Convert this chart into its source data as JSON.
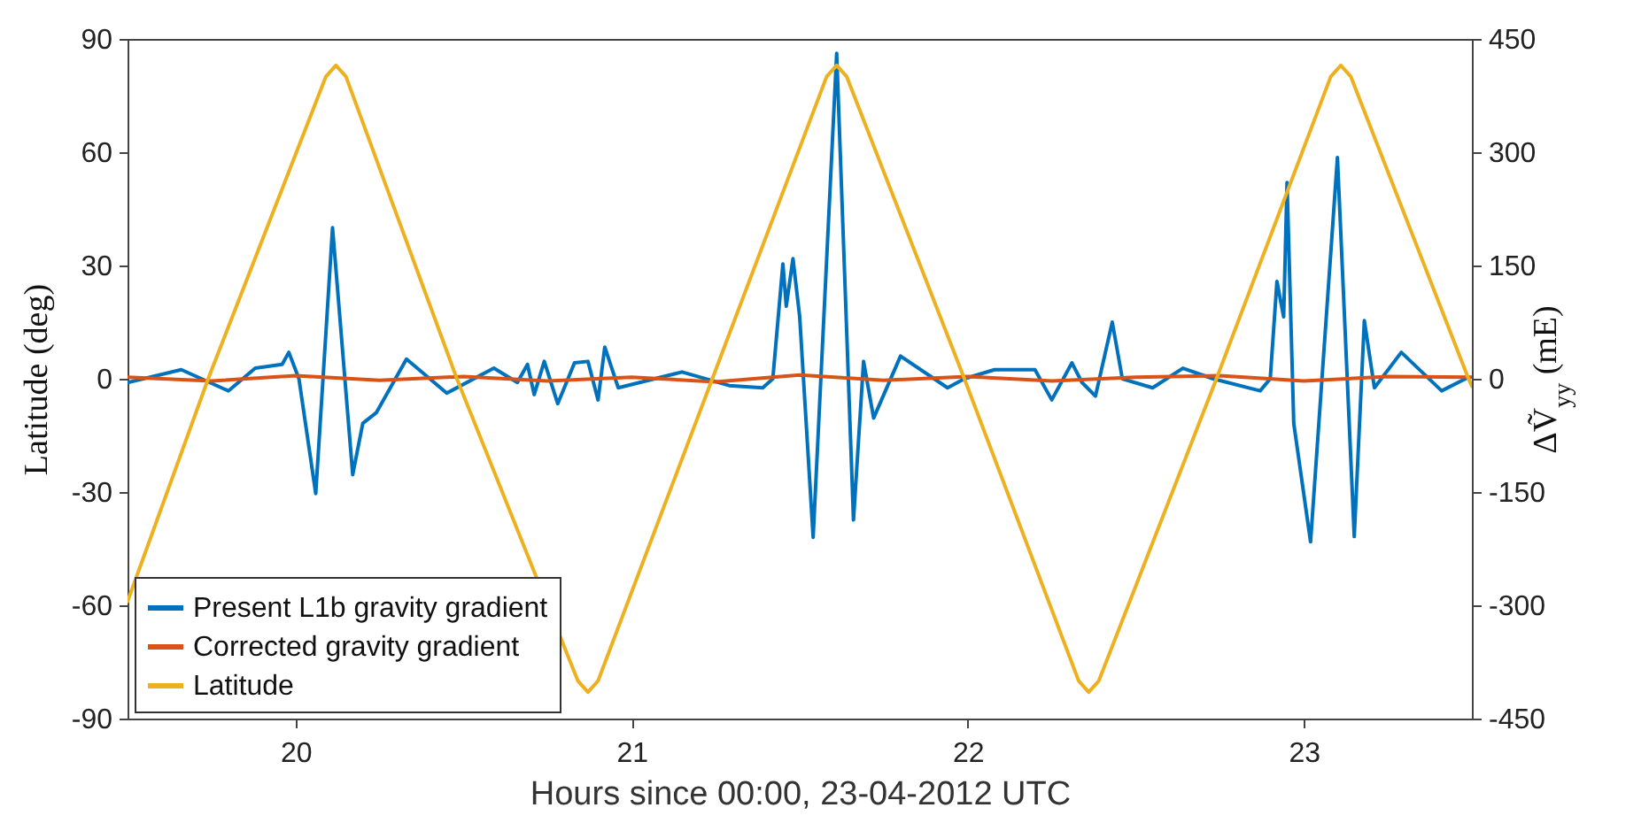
{
  "chart_data": {
    "type": "line",
    "xlabel": "Hours since 00:00, 23-04-2012 UTC",
    "ylabel": "Latitude (deg)",
    "y2label": "ΔṼ$_{yy}$ (mE)",
    "xlim": [
      19.5,
      23.5
    ],
    "xticks": [
      20,
      21,
      22,
      23
    ],
    "ylim": [
      -90,
      90
    ],
    "yticks": [
      -90,
      -60,
      -30,
      0,
      30,
      60,
      90
    ],
    "y2lim": [
      -450,
      450
    ],
    "y2ticks": [
      -450,
      -300,
      -150,
      0,
      150,
      300,
      450
    ],
    "grid": false,
    "legend": "bottom left",
    "series": [
      {
        "name": "Present L1b gravity gradient",
        "color": "#0072bd",
        "axis": "y2",
        "x": [
          19.5,
          19.66,
          19.8,
          19.88,
          19.96,
          19.98,
          20.01,
          20.06,
          20.11,
          20.17,
          20.2,
          20.24,
          20.33,
          20.45,
          20.59,
          20.66,
          20.69,
          20.71,
          20.74,
          20.78,
          20.83,
          20.87,
          20.9,
          20.92,
          20.96,
          21.15,
          21.29,
          21.39,
          21.42,
          21.45,
          21.46,
          21.48,
          21.5,
          21.54,
          21.61,
          21.66,
          21.69,
          21.72,
          21.8,
          21.94,
          21.99,
          22.08,
          22.2,
          22.25,
          22.31,
          22.34,
          22.38,
          22.43,
          22.46,
          22.55,
          22.64,
          22.73,
          22.87,
          22.9,
          22.92,
          22.94,
          22.95,
          22.97,
          23.02,
          23.1,
          23.15,
          23.18,
          23.21,
          23.29,
          23.41,
          23.49
        ],
        "values": [
          -5,
          12,
          -16,
          14,
          19,
          35,
          0,
          -152,
          200,
          -127,
          -59,
          -45,
          26,
          -19,
          14,
          -5,
          19,
          -21,
          23,
          -33,
          21,
          23,
          -28,
          42,
          -12,
          9,
          -9,
          -12,
          0,
          152,
          96,
          159,
          82,
          -210,
          431,
          -187,
          23,
          -52,
          30,
          -12,
          0,
          12,
          12,
          -28,
          21,
          -5,
          -23,
          75,
          0,
          -12,
          14,
          0,
          -16,
          0,
          129,
          82,
          260,
          -59,
          -216,
          293,
          -209,
          77,
          -12,
          35,
          -16,
          2
        ]
      },
      {
        "name": "Corrected gravity gradient",
        "color": "#d95319",
        "axis": "y2",
        "x": [
          19.5,
          19.75,
          20,
          20.25,
          20.5,
          20.75,
          21,
          21.25,
          21.5,
          21.75,
          22,
          22.25,
          22.5,
          22.75,
          23,
          23.25,
          23.5
        ],
        "values": [
          2,
          -3,
          4,
          -2,
          3,
          -3,
          2,
          -4,
          5,
          -2,
          3,
          -3,
          2,
          4,
          -3,
          3,
          2
        ]
      },
      {
        "name": "Latitude",
        "color": "#edb120",
        "x": [
          19.5,
          19.74,
          20.09,
          20.12,
          20.15,
          20.48,
          20.84,
          20.87,
          20.9,
          21.24,
          21.58,
          21.61,
          21.64,
          21.99,
          22.33,
          22.36,
          22.39,
          22.74,
          23.08,
          23.11,
          23.14,
          23.49,
          23.5
        ],
        "values": [
          -59,
          0,
          80,
          83,
          80,
          0,
          -80,
          -83,
          -80,
          0,
          80,
          83,
          80,
          0,
          -80,
          -83,
          -80,
          0,
          80,
          83,
          80,
          0,
          -2
        ]
      }
    ]
  }
}
